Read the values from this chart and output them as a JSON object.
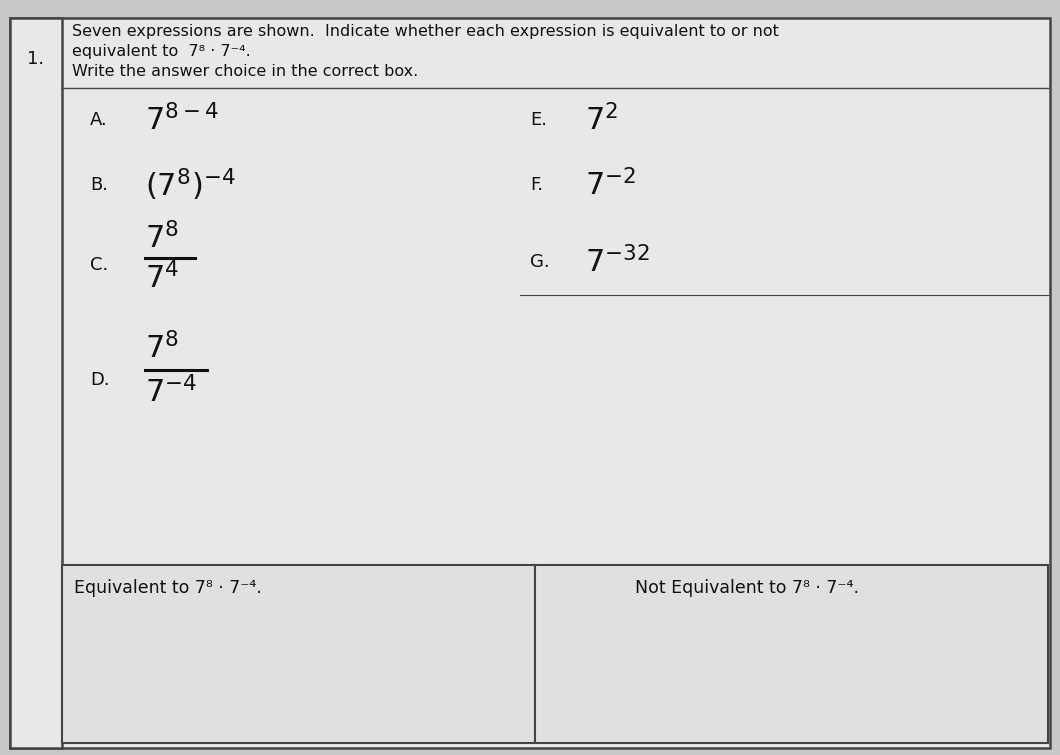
{
  "title_num": "1.",
  "instruction_line1": "Seven expressions are shown.  Indicate whether each expression is equivalent to or not",
  "instruction_line2": "equivalent to  7⁸ · 7⁻⁴.",
  "instruction_line3": "Write the answer choice in the correct box.",
  "bg_color": "#c8c8c8",
  "paper_color": "#e8e8e8",
  "box_color": "#e0e0e0",
  "border_color": "#444444",
  "text_color": "#111111",
  "equiv_label": "Equivalent to 7⁸ · 7⁻⁴.",
  "not_equiv_label": "Not Equivalent to 7⁸ · 7⁻⁴.",
  "fig_width": 10.6,
  "fig_height": 7.55
}
